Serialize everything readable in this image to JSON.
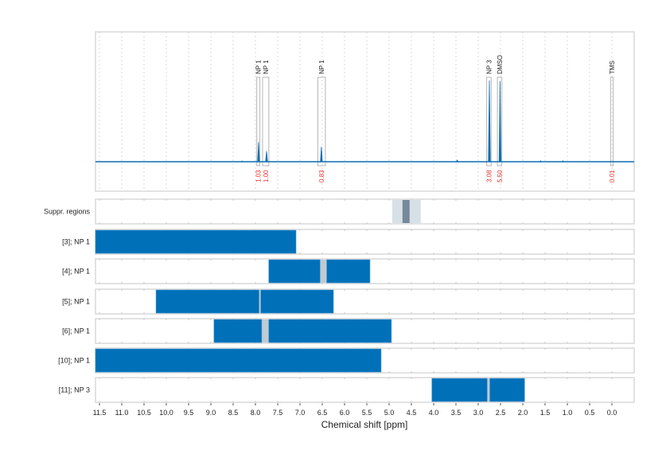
{
  "chart_data": {
    "type": "nmr-spectrum-with-region-bars",
    "xlabel": "Chemical shift [ppm]",
    "xlim": [
      11.59,
      -0.5
    ],
    "x_reversed": true,
    "xticks": [
      11.5,
      11.0,
      10.5,
      10.0,
      9.5,
      9.0,
      8.5,
      8.0,
      7.5,
      7.0,
      6.5,
      6.0,
      5.5,
      5.0,
      4.5,
      4.0,
      3.5,
      3.0,
      2.5,
      2.0,
      1.5,
      1.0,
      0.5,
      0.0
    ],
    "xtick_labels": [
      "11.5",
      "11.0",
      "10.5",
      "10.0",
      "9.5",
      "9.0",
      "8.5",
      "8.0",
      "7.5",
      "7.0",
      "6.5",
      "6.0",
      "5.5",
      "5.0",
      "4.5",
      "4.0",
      "3.5",
      "3.0",
      "2.5",
      "2.0",
      "1.5",
      "1.0",
      "0.5",
      "0.0"
    ],
    "grid": "dashed vertical every 0.5 ppm",
    "colors": {
      "spectrum": "#0a6eb4",
      "bar": "#0070b8",
      "gap": "#bfcbd1",
      "suppr_light": "#d6e0e7",
      "suppr_dark": "#76889a",
      "integral": "#e8322d",
      "box": "#b5b5b5",
      "panel_border": "#d9d9d9"
    },
    "spectrum": {
      "peaks": [
        {
          "ppm": 7.93,
          "intensity": 0.24
        },
        {
          "ppm": 7.75,
          "intensity": 0.13
        },
        {
          "ppm": 6.52,
          "intensity": 0.18
        },
        {
          "ppm": 2.75,
          "intensity": 0.99
        },
        {
          "ppm": 2.51,
          "intensity": 0.98
        },
        {
          "ppm": 3.47,
          "intensity": 0.02
        },
        {
          "ppm": 1.6,
          "intensity": 0.012
        },
        {
          "ppm": 1.1,
          "intensity": 0.012
        },
        {
          "ppm": 8.3,
          "intensity": 0.01
        }
      ],
      "annotations": [
        {
          "label": "NP 1",
          "from": 7.97,
          "to": 7.9,
          "integral": "1.03"
        },
        {
          "label": "NP 1",
          "from": 7.84,
          "to": 7.7,
          "integral": "1.00"
        },
        {
          "label": "NP 1",
          "from": 6.6,
          "to": 6.43,
          "integral": "0.83"
        },
        {
          "label": "NP 3",
          "from": 2.81,
          "to": 2.71,
          "integral": "3.08"
        },
        {
          "label": "DMSO",
          "from": 2.57,
          "to": 2.47,
          "integral": "5.50"
        },
        {
          "label": "TMS",
          "from": 0.03,
          "to": -0.03,
          "integral": "0.01"
        }
      ]
    },
    "tracks": [
      {
        "label": "Suppr. regions",
        "type": "suppr",
        "light": [
          4.93,
          4.29
        ],
        "dark": [
          4.7,
          4.54
        ]
      },
      {
        "label": "[3]; NP 1",
        "segments": [
          [
            11.59,
            7.09
          ]
        ],
        "gaps": []
      },
      {
        "label": "[4]; NP 1",
        "segments": [
          [
            7.7,
            6.55
          ],
          [
            6.4,
            5.43
          ]
        ],
        "gaps": [
          [
            6.55,
            6.4
          ]
        ]
      },
      {
        "label": "[5]; NP 1",
        "segments": [
          [
            10.23,
            7.92
          ],
          [
            7.88,
            6.25
          ]
        ],
        "gaps": [
          [
            7.92,
            7.88
          ]
        ]
      },
      {
        "label": "[6]; NP 1",
        "segments": [
          [
            8.93,
            7.86
          ],
          [
            7.7,
            4.95
          ]
        ],
        "gaps": [
          [
            7.86,
            7.7
          ]
        ]
      },
      {
        "label": "[10]; NP 1",
        "segments": [
          [
            11.59,
            5.18
          ]
        ],
        "gaps": []
      },
      {
        "label": "[11]; NP 3",
        "segments": [
          [
            4.04,
            2.8
          ],
          [
            2.74,
            1.96
          ]
        ],
        "gaps": [
          [
            2.8,
            2.74
          ]
        ]
      }
    ]
  }
}
